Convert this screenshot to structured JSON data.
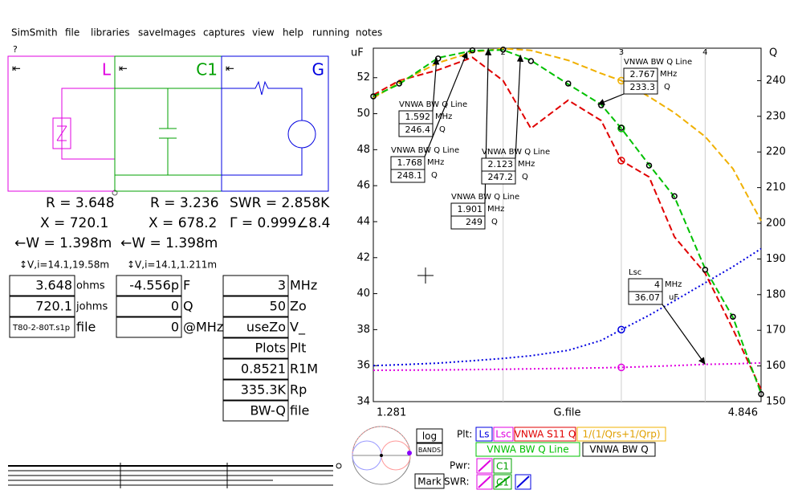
{
  "menu": [
    "SimSmith",
    "file",
    "libraries",
    "saveImages",
    "captures",
    "view",
    "help",
    "running",
    "notes"
  ],
  "help": "?",
  "blocks": [
    {
      "label": "L",
      "color": "#e000e0"
    },
    {
      "label": "C1",
      "color": "#00a000"
    },
    {
      "label": "G",
      "color": "#0000e0"
    }
  ],
  "readouts": {
    "l": [
      "R = 3.648",
      "X = 720.1",
      "←W = 1.398m",
      "↕V,i=14.1,19.58m"
    ],
    "c1": [
      "R = 3.236",
      "X = 678.2",
      "←W = 1.398m",
      "↕V,i=14.1,1.211m"
    ],
    "g": [
      "SWR = 2.858K",
      "Γ = 0.999∠8.4"
    ]
  },
  "fields": {
    "l": [
      [
        "3.648",
        "ohms"
      ],
      [
        "720.1",
        "johms"
      ],
      [
        "T80-2-80T.s1p",
        "file"
      ]
    ],
    "c1": [
      [
        "-4.556p",
        "F"
      ],
      [
        "0",
        "Q"
      ],
      [
        "0",
        "@MHz"
      ]
    ],
    "g": [
      [
        "3",
        "MHz"
      ],
      [
        "50",
        "Zo"
      ],
      [
        "useZo",
        "V_"
      ],
      [
        "Plots",
        "Plt"
      ],
      [
        "0.8521",
        "R1M"
      ],
      [
        "335.3K",
        "Rp"
      ],
      [
        "BW-Q",
        "file"
      ]
    ]
  },
  "chart_data": {
    "type": "line",
    "log_x": true,
    "grid": false,
    "y_label": "uF",
    "y2_label": "Q",
    "x_label": "G.file",
    "xlim": [
      1.281,
      4.846
    ],
    "xticks": [
      1.281,
      4.846
    ],
    "top_ticks": [
      2,
      3,
      4
    ],
    "cursor_x": 3,
    "ylim": [
      34,
      53.64
    ],
    "yticks": [
      34,
      36,
      38,
      40,
      42,
      44,
      46,
      48,
      50,
      52
    ],
    "y2lim": [
      150,
      249.1
    ],
    "y2ticks": [
      150,
      160,
      170,
      180,
      190,
      200,
      210,
      220,
      230,
      240
    ],
    "x": [
      1.281,
      1.4,
      1.6,
      1.8,
      2.0,
      2.2,
      2.5,
      2.8,
      3.0,
      3.3,
      3.6,
      4.0,
      4.4,
      4.846
    ],
    "series": [
      {
        "name": "Ls",
        "color": "#0000e0",
        "style": "dotted",
        "values": [
          36.0,
          36.05,
          36.14,
          36.27,
          36.4,
          36.55,
          36.85,
          37.4,
          38.0,
          38.8,
          39.6,
          40.6,
          41.5,
          42.5
        ]
      },
      {
        "name": "Lsc",
        "color": "#e000e0",
        "style": "dotted",
        "values": [
          35.74,
          35.75,
          35.76,
          35.78,
          35.8,
          35.82,
          35.85,
          35.88,
          35.9,
          35.95,
          36.0,
          36.07,
          36.1,
          36.15
        ]
      },
      {
        "name": "VNWA S11 Q",
        "color": "#e00000",
        "style": "dashed",
        "axis": "y2",
        "values": [
          236,
          240,
          243,
          246.5,
          240,
          226.6,
          234.5,
          228.8,
          217.6,
          213,
          196.2,
          186,
          170.3,
          153.4
        ]
      },
      {
        "name": "1/(1/Qrs+1/Qrp)",
        "color": "#f0b000",
        "style": "dashed",
        "axis": "y2",
        "values": [
          235.1,
          239.5,
          245,
          248,
          249,
          248.5,
          245.7,
          242,
          240,
          235.5,
          231,
          224.3,
          215.3,
          200.7
        ]
      },
      {
        "name": "VNWA BW Q Line",
        "color": "#00c000",
        "style": "dashed",
        "axis": "y2",
        "values": [
          235.6,
          239,
          246.4,
          248.4,
          248.6,
          245.7,
          239,
          233.3,
          226.6,
          216.4,
          207.4,
          187.2,
          173.6,
          152.3
        ]
      },
      {
        "name": "VNWA BW Q",
        "color": "#000000",
        "style": "points",
        "axis": "y2",
        "values": [
          235.6,
          239.2,
          246.2,
          248.5,
          248.7,
          245.5,
          239.2,
          233.1,
          226.8,
          216.2,
          207.6,
          187.0,
          173.8,
          152.1
        ]
      }
    ],
    "annotations": [
      {
        "name": "VNWA BW Q Line",
        "freq": 1.592,
        "freq_unit": "MHz",
        "value": 246.4,
        "value_unit": "Q",
        "axis": "y2"
      },
      {
        "name": "VNWA BW Q Line",
        "freq": 1.768,
        "freq_unit": "MHz",
        "value": 248.1,
        "value_unit": "Q",
        "axis": "y2"
      },
      {
        "name": "VNWA BW Q Line",
        "freq": 1.901,
        "freq_unit": "MHz",
        "value": 249,
        "value_unit": "Q",
        "axis": "y2"
      },
      {
        "name": "VNWA BW Q Line",
        "freq": 2.123,
        "freq_unit": "MHz",
        "value": 247.2,
        "value_unit": "Q",
        "axis": "y2"
      },
      {
        "name": "VNWA BW Q Line",
        "freq": 2.767,
        "freq_unit": "MHz",
        "value": 233.3,
        "value_unit": "Q",
        "axis": "y2"
      },
      {
        "name": "Lsc",
        "freq": 4,
        "freq_unit": "MHz",
        "value": 36.07,
        "value_unit": "uF",
        "axis": "y"
      }
    ]
  },
  "controls": {
    "log": "log",
    "bands": "BANDS",
    "mark": "Mark",
    "plt": "Plt:",
    "pwr": "Pwr:",
    "swr": "SWR:",
    "pwr_items": [
      "C1"
    ],
    "swr_items": [
      "C1"
    ]
  }
}
